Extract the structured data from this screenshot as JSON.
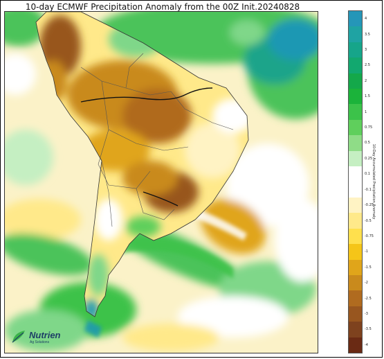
{
  "title": "10-day ECMWF Precipitation Anomaly from the 00Z Init.20240828",
  "colorbar": {
    "label": "10-Day Accumulated Precipitation Anomaly",
    "ticks": [
      "4",
      "3.5",
      "3",
      "2.5",
      "2",
      "1.5",
      "1",
      "0.75",
      "0.5",
      "0.25",
      "0.1",
      "-0.1",
      "-0.25",
      "-0.5",
      "-0.75",
      "-1",
      "-1.5",
      "-2",
      "-2.5",
      "-3",
      "-3.5",
      "-4"
    ],
    "colors": [
      "#2596b8",
      "#1fa3a3",
      "#16a58a",
      "#12a86f",
      "#14a84a",
      "#1bb33a",
      "#3cc24a",
      "#5fcf5c",
      "#8fdc87",
      "#c5efc2",
      "#ffffff",
      "#ffffff",
      "#fff3c4",
      "#ffe98a",
      "#ffe04d",
      "#f5c518",
      "#e0a51a",
      "#c98a1c",
      "#b06b1f",
      "#98561f",
      "#7e421e",
      "#6a2a14"
    ]
  },
  "logo": {
    "name": "Nutrien",
    "sub": "Ag Solutions"
  }
}
